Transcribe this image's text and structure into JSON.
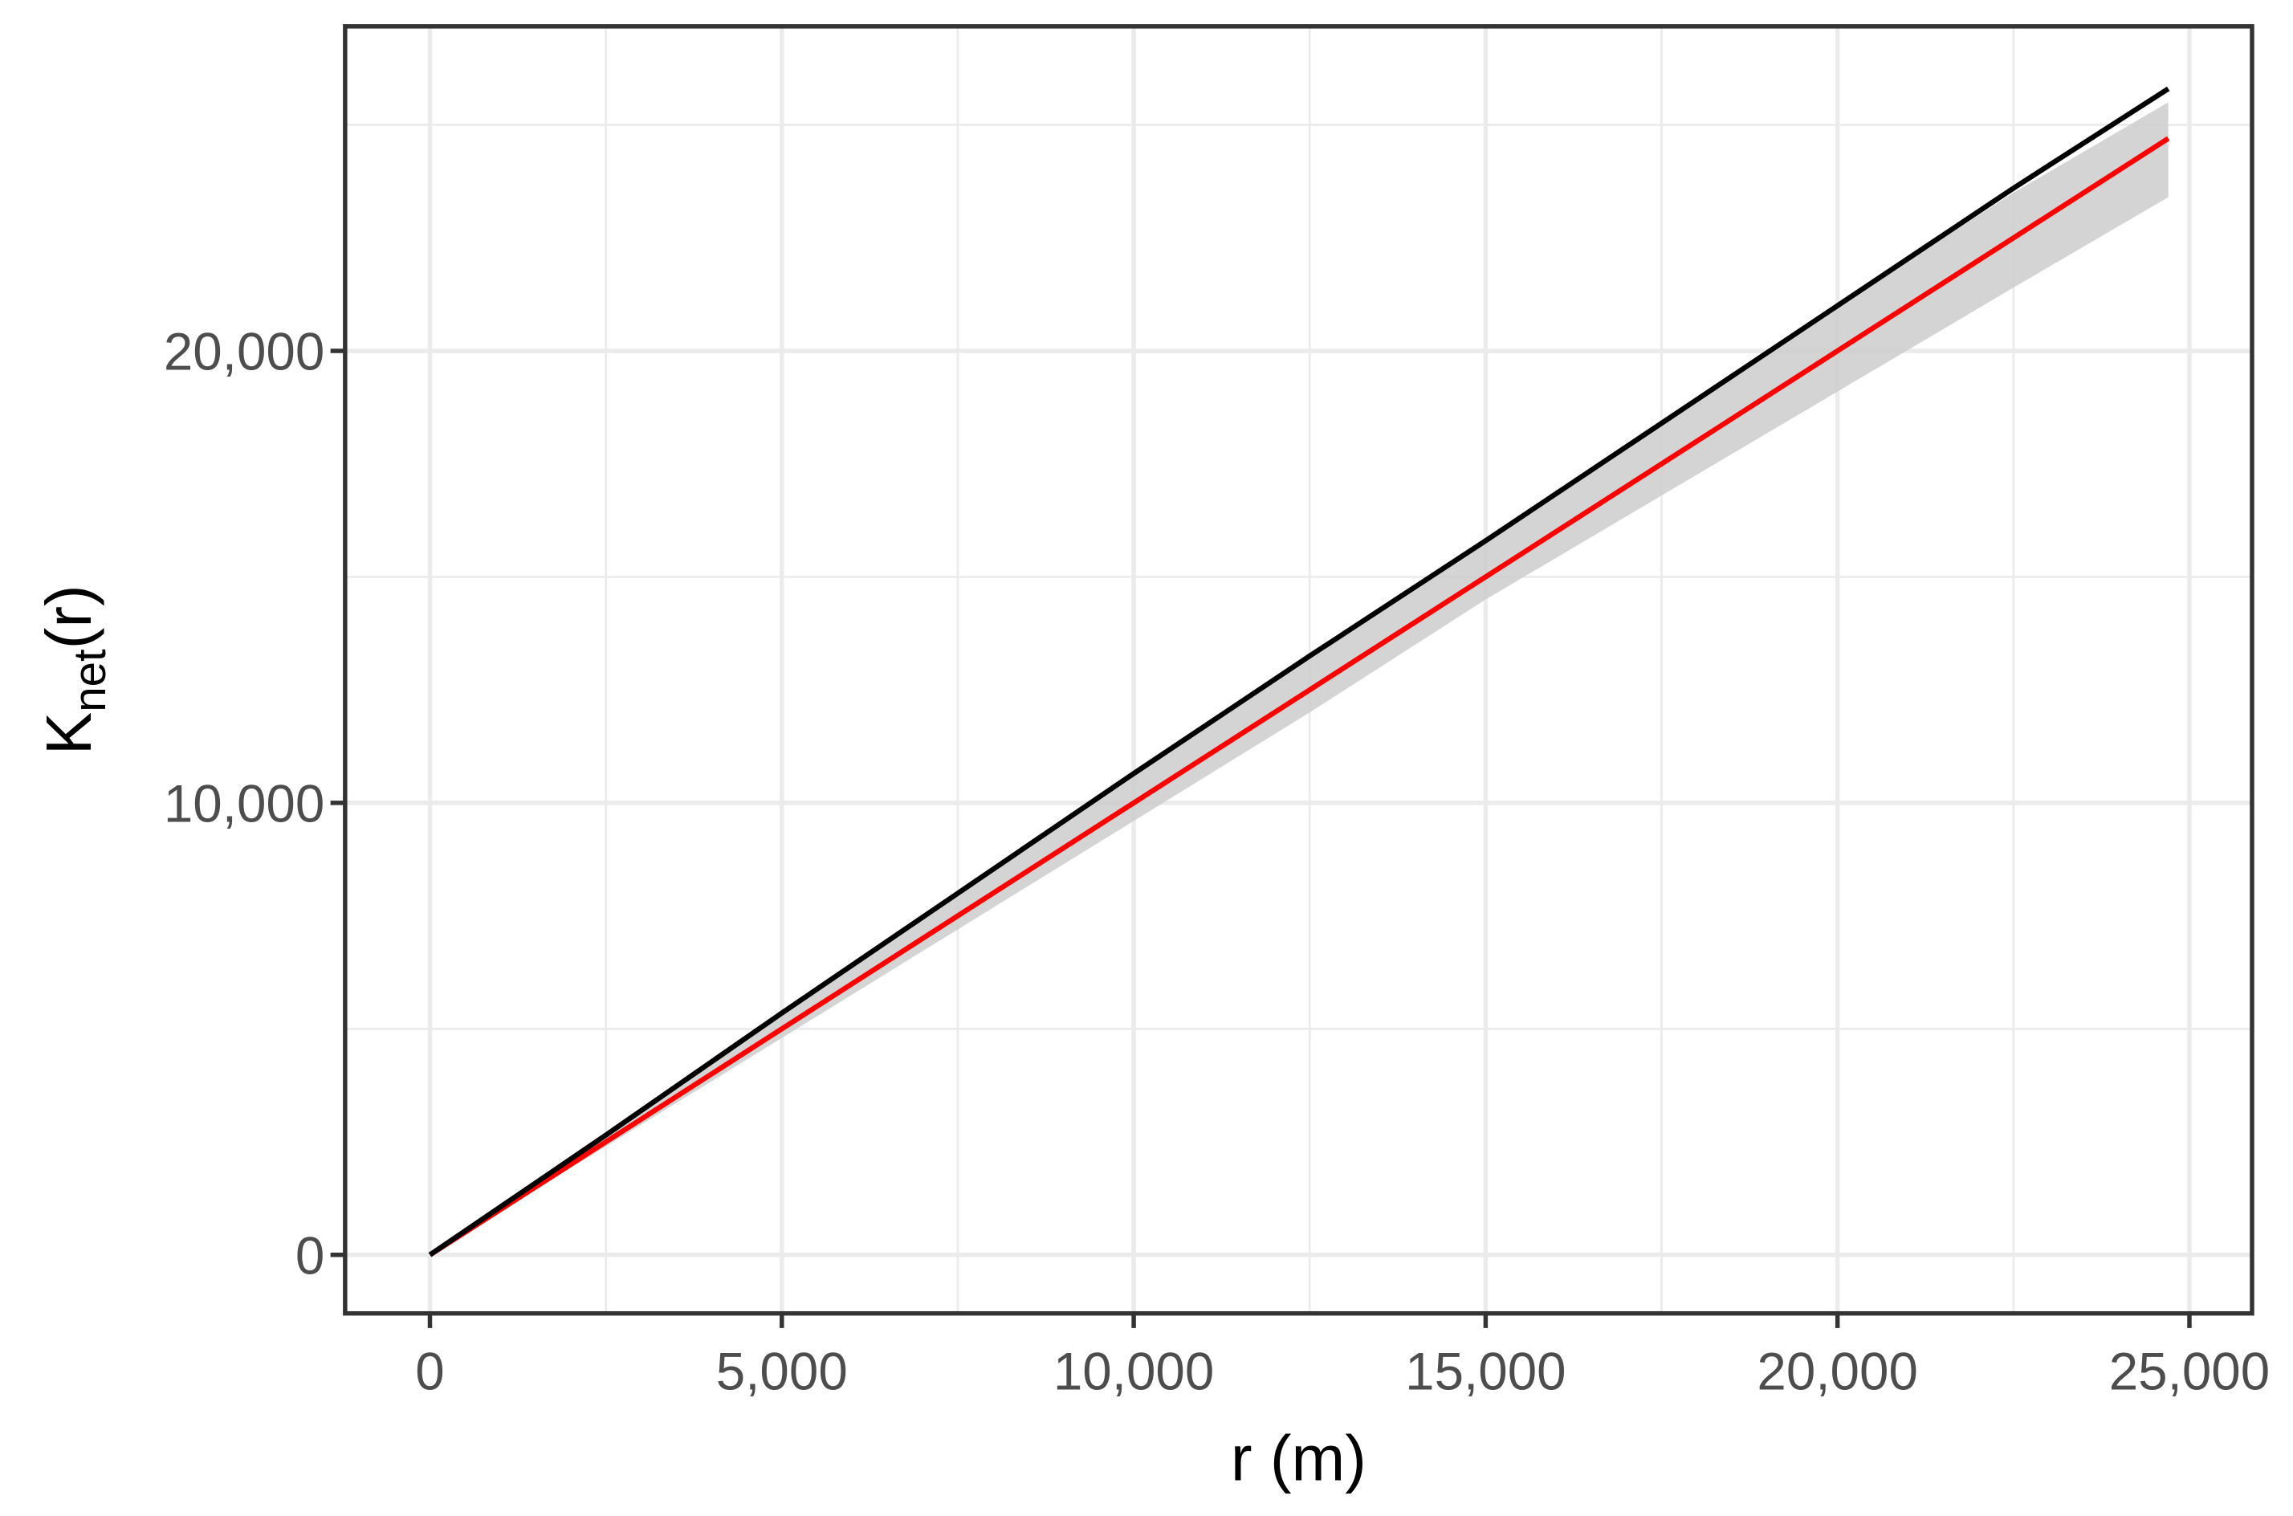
{
  "chart_data": {
    "type": "line",
    "x_label": "r (m)",
    "y_label": {
      "main": "K",
      "sub": "net",
      "after": "(r)"
    },
    "x": [
      0,
      2500,
      5000,
      7500,
      10000,
      12500,
      15000,
      17500,
      20000,
      22500,
      24700
    ],
    "band": {
      "color": "#cccccc",
      "lower": [
        0,
        2400,
        4800,
        7200,
        9600,
        12000,
        14500,
        16800,
        19100,
        21400,
        23400
      ],
      "upper": [
        0,
        2650,
        5350,
        8000,
        10600,
        13200,
        15800,
        18400,
        21000,
        23500,
        25500
      ]
    },
    "series": [
      {
        "color": "#000000",
        "values": [
          0,
          2650,
          5350,
          8000,
          10650,
          13250,
          15800,
          18400,
          21000,
          23600,
          25800
        ]
      },
      {
        "color": "#ff0000",
        "values": [
          0,
          2500,
          5000,
          7500,
          10000,
          12500,
          15000,
          17500,
          20000,
          22500,
          24700
        ]
      }
    ],
    "xlim": [
      -1205,
      25890
    ],
    "ylim": [
      -1295,
      27180
    ],
    "xticks": [
      0,
      {
        "value": 5000,
        "label": "5,000"
      },
      {
        "value": 10000,
        "label": "10,000"
      },
      {
        "value": 15000,
        "label": "15,000"
      },
      {
        "value": 20000,
        "label": "20,000"
      },
      {
        "value": 25000,
        "label": "25,000"
      }
    ],
    "yticks": [
      0,
      {
        "value": 10000,
        "label": "10,000"
      },
      {
        "value": 20000,
        "label": "20,000"
      }
    ],
    "x_minor_grid": [
      2500,
      7500,
      12500,
      17500,
      22500
    ],
    "y_minor_grid": [
      5000,
      15000,
      25000
    ],
    "grid": true
  }
}
